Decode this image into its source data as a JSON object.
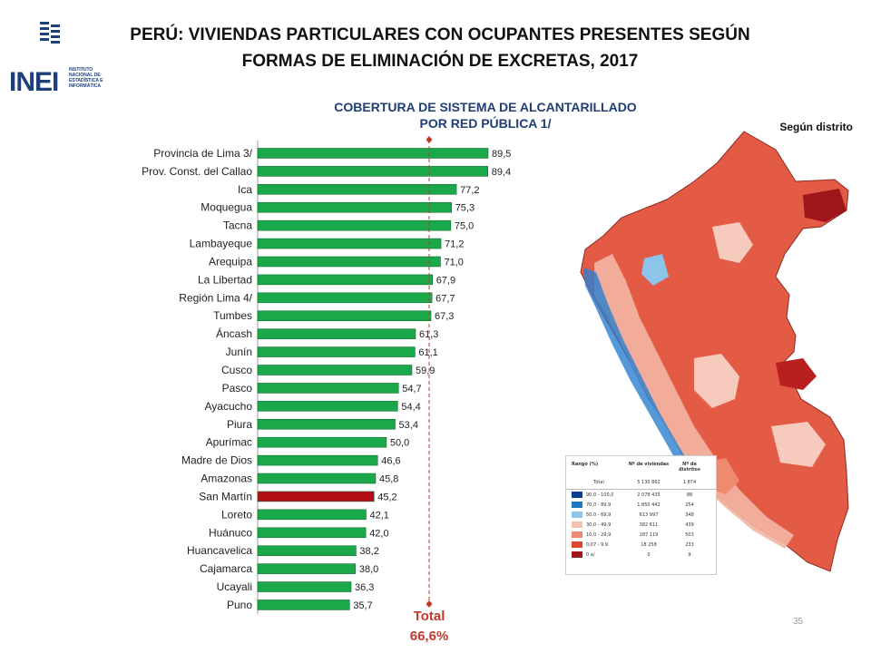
{
  "header": {
    "logo_text": "INEI",
    "logo_subtitle": "INSTITUTO\nNACIONAL DE\nESTADÍSTICA E\nINFORMÁTICA",
    "title_line1": "PERÚ: VIVIENDAS PARTICULARES CON OCUPANTES PRESENTES SEGÚN",
    "title_line2": "FORMAS DE ELIMINACIÓN DE EXCRETAS, 2017"
  },
  "chart_data": {
    "type": "bar",
    "orientation": "horizontal",
    "title_line1": "COBERTURA DE SISTEMA DE ALCANTARILLADO",
    "title_line2": "POR RED PÚBLICA 1/",
    "categories": [
      "Provincia de Lima 3/",
      "Prov. Const. del Callao",
      "Ica",
      "Moquegua",
      "Tacna",
      "Lambayeque",
      "Arequipa",
      "La Libertad",
      "Región Lima 4/",
      "Tumbes",
      "Áncash",
      "Junín",
      "Cusco",
      "Pasco",
      "Ayacucho",
      "Piura",
      "Apurímac",
      "Madre de Dios",
      "Amazonas",
      "San Martín",
      "Loreto",
      "Huánuco",
      "Huancavelica",
      "Cajamarca",
      "Ucayali",
      "Puno"
    ],
    "values": [
      89.5,
      89.4,
      77.2,
      75.3,
      75.0,
      71.2,
      71.0,
      67.9,
      67.7,
      67.3,
      61.3,
      61.1,
      59.9,
      54.7,
      54.4,
      53.4,
      50.0,
      46.6,
      45.8,
      45.2,
      42.1,
      42.0,
      38.2,
      38.0,
      36.3,
      35.7
    ],
    "value_labels": [
      "89,5",
      "89,4",
      "77,2",
      "75,3",
      "75,0",
      "71,2",
      "71,0",
      "67,9",
      "67,7",
      "67,3",
      "61,3",
      "61,1",
      "59,9",
      "54,7",
      "54,4",
      "53,4",
      "50,0",
      "46,6",
      "45,8",
      "45,2",
      "42,1",
      "42,0",
      "38,2",
      "38,0",
      "36,3",
      "35,7"
    ],
    "highlight_category": "San Martín",
    "bar_color": "#1aa84a",
    "highlight_color": "#b30f14",
    "reference_line": {
      "value": 66.6,
      "label": "Total",
      "value_label": "66,6%",
      "color": "#c0392b"
    },
    "xlim": [
      0,
      100
    ]
  },
  "map": {
    "title": "Según distrito",
    "legend": {
      "headers": [
        "Rango (%)",
        "Nº de viviendas",
        "Nº de distritos"
      ],
      "total_label": "Total",
      "total_viviendas": "5 130 862",
      "total_distritos": "1 874",
      "rows": [
        {
          "range": "90,0 - 100,0",
          "viviendas": "2 078 435",
          "distritos": "88",
          "color": "#0b3f8f"
        },
        {
          "range": "70,0 - 89,9",
          "viviendas": "1 850 442",
          "distritos": "254",
          "color": "#1f78c8"
        },
        {
          "range": "50,0 - 69,9",
          "viviendas": "613 997",
          "distritos": "348",
          "color": "#8cc4ea"
        },
        {
          "range": "30,0 - 49,9",
          "viviendas": "382 611",
          "distritos": "439",
          "color": "#f4c1b0"
        },
        {
          "range": "10,0 - 29,9",
          "viviendas": "187 119",
          "distritos": "503",
          "color": "#ee8a70"
        },
        {
          "range": "0,07 - 9,9",
          "viviendas": "18 258",
          "distritos": "233",
          "color": "#e0452e"
        },
        {
          "range": "0 a/",
          "viviendas": "0",
          "distritos": "9",
          "color": "#a0151a"
        }
      ]
    }
  },
  "footer": {
    "page_number": "35"
  }
}
